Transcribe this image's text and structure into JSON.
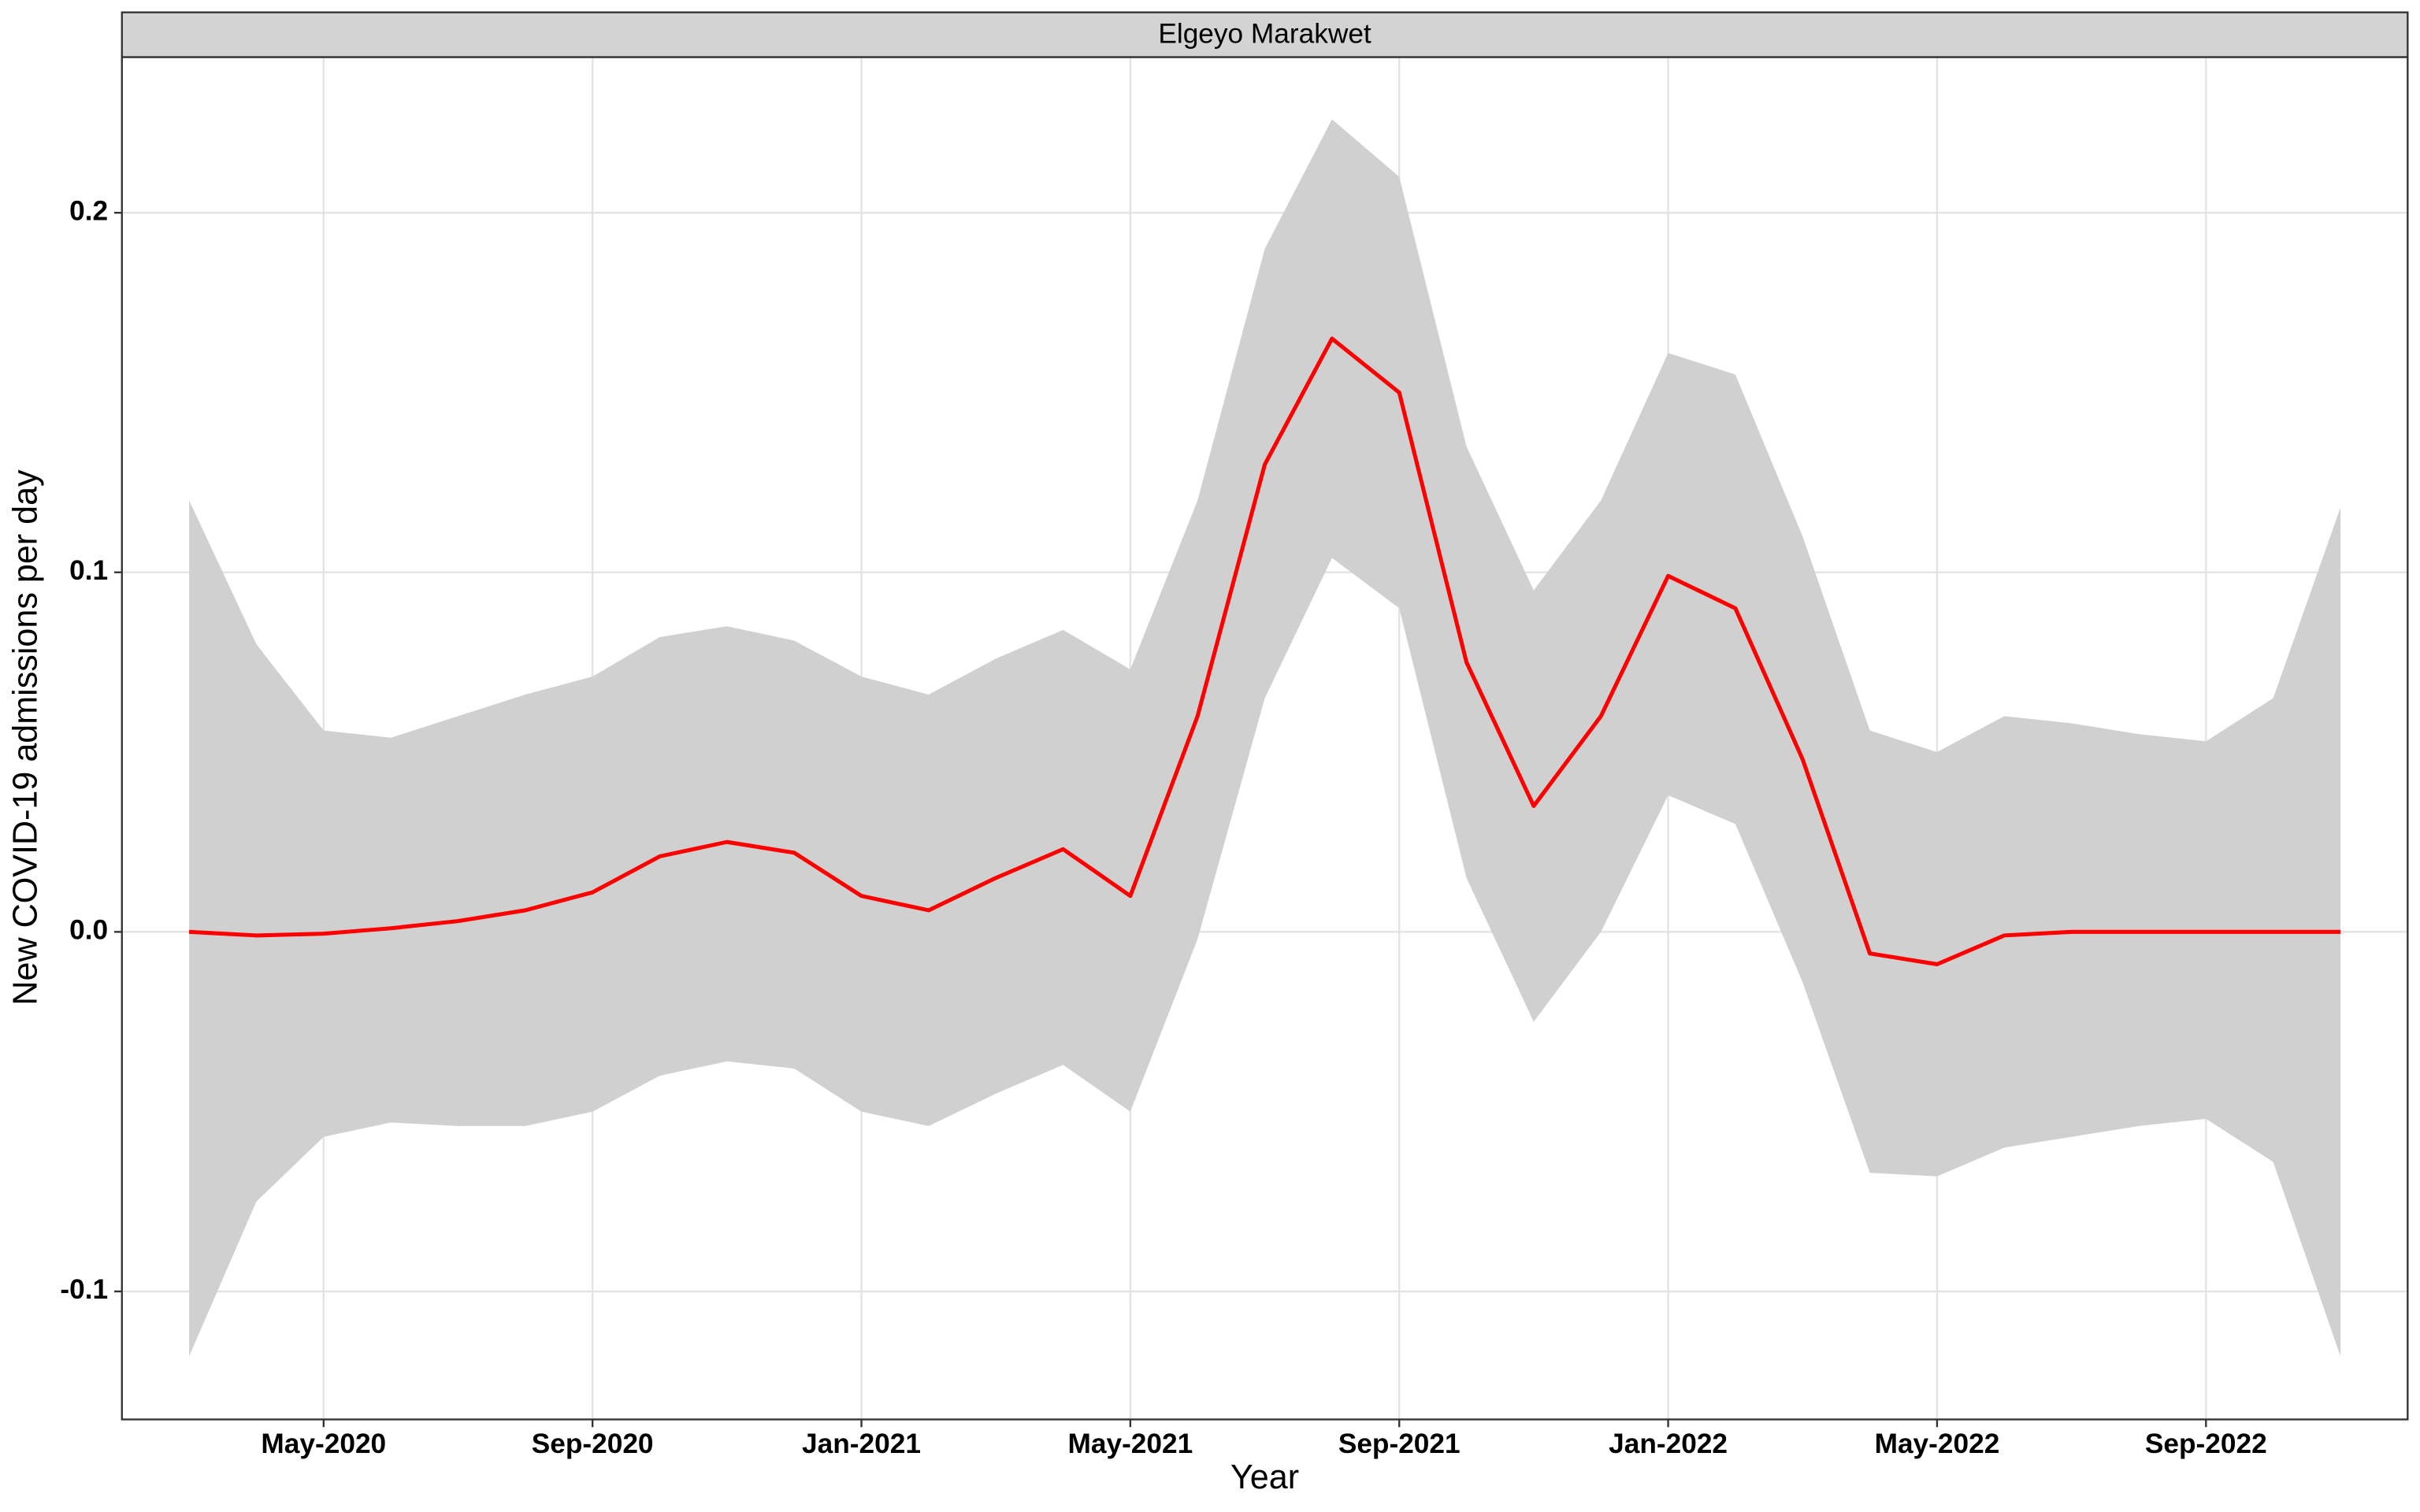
{
  "chart_data": {
    "type": "ribbon-line",
    "title": "Elgeyo Marakwet",
    "x_label": "Year",
    "y_label": "New COVID-19 admissions per day",
    "color": "#ff0000",
    "band_color": "#d0d0d0",
    "grid": true,
    "x": [
      "2020-03",
      "2020-04",
      "2020-05",
      "2020-06",
      "2020-07",
      "2020-08",
      "2020-09",
      "2020-10",
      "2020-11",
      "2020-12",
      "2021-01",
      "2021-02",
      "2021-03",
      "2021-04",
      "2021-05",
      "2021-06",
      "2021-07",
      "2021-08",
      "2021-09",
      "2021-10",
      "2021-11",
      "2021-12",
      "2022-01",
      "2022-02",
      "2022-03",
      "2022-04",
      "2022-05",
      "2022-06",
      "2022-07",
      "2022-08",
      "2022-09",
      "2022-10",
      "2022-11"
    ],
    "values": [
      0,
      -0.001,
      -0.0005,
      0.001,
      0.003,
      0.006,
      0.011,
      0.021,
      0.025,
      0.022,
      0.01,
      0.006,
      0.015,
      0.023,
      0.01,
      0.06,
      0.13,
      0.165,
      0.15,
      0.075,
      0.035,
      0.06,
      0.099,
      0.09,
      0.048,
      -0.006,
      -0.009,
      -0.001,
      0,
      0,
      0,
      0,
      0
    ],
    "upper": [
      0.12,
      0.08,
      0.056,
      0.054,
      0.06,
      0.066,
      0.071,
      0.082,
      0.085,
      0.081,
      0.071,
      0.066,
      0.076,
      0.084,
      0.073,
      0.12,
      0.19,
      0.226,
      0.21,
      0.135,
      0.095,
      0.12,
      0.161,
      0.155,
      0.11,
      0.056,
      0.05,
      0.06,
      0.058,
      0.055,
      0.053,
      0.065,
      0.118
    ],
    "lower": [
      -0.118,
      -0.075,
      -0.057,
      -0.053,
      -0.054,
      -0.054,
      -0.05,
      -0.04,
      -0.036,
      -0.038,
      -0.05,
      -0.054,
      -0.045,
      -0.037,
      -0.05,
      -0.002,
      0.065,
      0.104,
      0.09,
      0.015,
      -0.025,
      0.0,
      0.038,
      0.03,
      -0.014,
      -0.067,
      -0.068,
      -0.06,
      -0.057,
      -0.054,
      -0.052,
      -0.064,
      -0.118
    ],
    "xlim": [
      "2020-02",
      "2022-12"
    ],
    "xticks": [
      {
        "value": "2020-05",
        "label": "May-2020"
      },
      {
        "value": "2020-09",
        "label": "Sep-2020"
      },
      {
        "value": "2021-01",
        "label": "Jan-2021"
      },
      {
        "value": "2021-05",
        "label": "May-2021"
      },
      {
        "value": "2021-09",
        "label": "Sep-2021"
      },
      {
        "value": "2022-01",
        "label": "Jan-2022"
      },
      {
        "value": "2022-05",
        "label": "May-2022"
      },
      {
        "value": "2022-09",
        "label": "Sep-2022"
      }
    ],
    "ylim": [
      -0.1356,
      0.2433
    ],
    "yticks": [
      -0.1,
      {
        "value": 0,
        "label": "0.0"
      },
      0.1,
      0.2
    ]
  }
}
